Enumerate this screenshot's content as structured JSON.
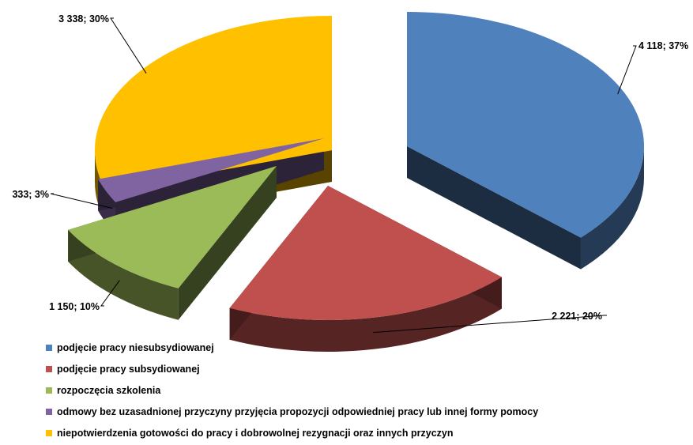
{
  "chart_data": {
    "type": "pie",
    "style": "3d-exploded",
    "title": "",
    "legend_position": "bottom",
    "slices": [
      {
        "name": "podjęcie pracy niesubsydiowanej",
        "value": 4118,
        "percent": 37,
        "label": "4 118; 37%",
        "color": "#4f81bd"
      },
      {
        "name": "podjęcie pracy subsydiowanej",
        "value": 2221,
        "percent": 20,
        "label": "2 221; 20%",
        "color": "#c0504d"
      },
      {
        "name": "rozpoczęcia szkolenia",
        "value": 1150,
        "percent": 10,
        "label": "1 150; 10%",
        "color": "#9bbb59"
      },
      {
        "name": "odmowy bez uzasadnionej przyczyny przyjęcia propozycji odpowiedniej pracy lub innej formy pomocy",
        "value": 333,
        "percent": 3,
        "label": "333; 3%",
        "color": "#8064a2"
      },
      {
        "name": "niepotwierdzenia gotowości do pracy i dobrowolnej rezygnacji oraz innych przyczyn",
        "value": 3338,
        "percent": 30,
        "label": "3 338; 30%",
        "color": "#ffc000"
      }
    ]
  }
}
